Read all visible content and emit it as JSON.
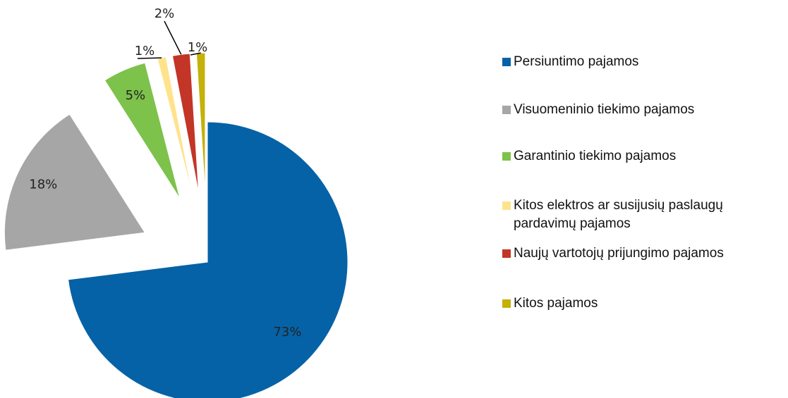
{
  "chart_data": {
    "type": "pie",
    "categories": [
      "Persiuntimo pajamos",
      "Visuomeninio tiekimo pajamos",
      "Garantinio tiekimo pajamos",
      "Kitos elektros ar susijusių paslaugų pardavimų pajamos",
      "Naujų vartotojų prijungimo pajamos",
      "Kitos pajamos"
    ],
    "values": [
      73,
      18,
      5,
      1,
      2,
      1
    ],
    "value_labels": [
      "73%",
      "18%",
      "5%",
      "1%",
      "2%",
      "1%"
    ],
    "colors": [
      "#0562a6",
      "#a6a6a6",
      "#7dc24b",
      "#ffe38c",
      "#c33526",
      "#c4b10a"
    ],
    "legend": "right"
  }
}
